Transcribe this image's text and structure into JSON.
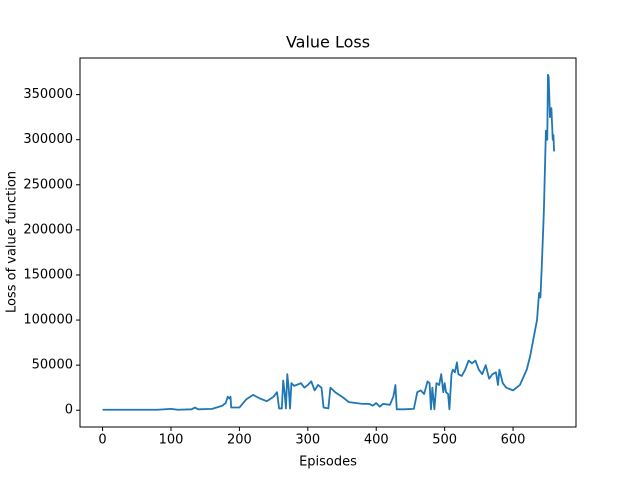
{
  "chart_data": {
    "type": "line",
    "title": "Value Loss",
    "x_label": "Episodes",
    "y_label": "Loss of value function",
    "color": "#1f77b4",
    "x": [
      0,
      50,
      80,
      100,
      110,
      130,
      135,
      140,
      160,
      175,
      180,
      183,
      185,
      187,
      188,
      200,
      210,
      220,
      230,
      240,
      250,
      255,
      258,
      262,
      264,
      266,
      268,
      270,
      272,
      274,
      276,
      280,
      290,
      295,
      300,
      305,
      310,
      315,
      320,
      323,
      330,
      333,
      340,
      350,
      360,
      370,
      380,
      390,
      395,
      400,
      405,
      410,
      420,
      425,
      428,
      430,
      440,
      455,
      460,
      465,
      470,
      475,
      478,
      480,
      482,
      485,
      488,
      492,
      495,
      498,
      500,
      502,
      505,
      507,
      510,
      512,
      515,
      518,
      520,
      525,
      530,
      535,
      540,
      545,
      550,
      555,
      560,
      565,
      570,
      575,
      578,
      580,
      585,
      590,
      600,
      610,
      620,
      625,
      630,
      635,
      638,
      640,
      642,
      645,
      648,
      650,
      651,
      652,
      654,
      656,
      658,
      659,
      660
    ],
    "values": [
      500,
      500,
      500,
      1500,
      500,
      1000,
      3000,
      1000,
      1500,
      5000,
      8000,
      15000,
      13000,
      15000,
      3000,
      3000,
      12000,
      17000,
      13000,
      10000,
      15000,
      20000,
      2000,
      2000,
      33000,
      20000,
      2000,
      40000,
      25000,
      2000,
      30000,
      27000,
      30000,
      25000,
      28000,
      32000,
      22000,
      28000,
      25000,
      3000,
      2000,
      25000,
      20000,
      15000,
      9000,
      8000,
      7000,
      7000,
      5000,
      8000,
      4000,
      7000,
      6000,
      15000,
      28000,
      1000,
      1000,
      1500,
      20000,
      22000,
      18000,
      32000,
      30000,
      1000,
      25000,
      1000,
      30000,
      28000,
      40000,
      20000,
      30000,
      20000,
      18000,
      1000,
      40000,
      45000,
      42000,
      53000,
      40000,
      38000,
      45000,
      55000,
      52000,
      55000,
      45000,
      40000,
      50000,
      35000,
      40000,
      42000,
      28000,
      45000,
      30000,
      25000,
      22000,
      28000,
      45000,
      60000,
      80000,
      100000,
      130000,
      125000,
      160000,
      220000,
      310000,
      300000,
      372000,
      370000,
      325000,
      335000,
      300000,
      305000,
      287000
    ],
    "xlim": [
      -33,
      692
    ],
    "ylim": [
      -18600,
      390600
    ],
    "xticks": [
      0,
      100,
      200,
      300,
      400,
      500,
      600
    ],
    "yticks": [
      0,
      50000,
      100000,
      150000,
      200000,
      250000,
      300000,
      350000
    ]
  }
}
